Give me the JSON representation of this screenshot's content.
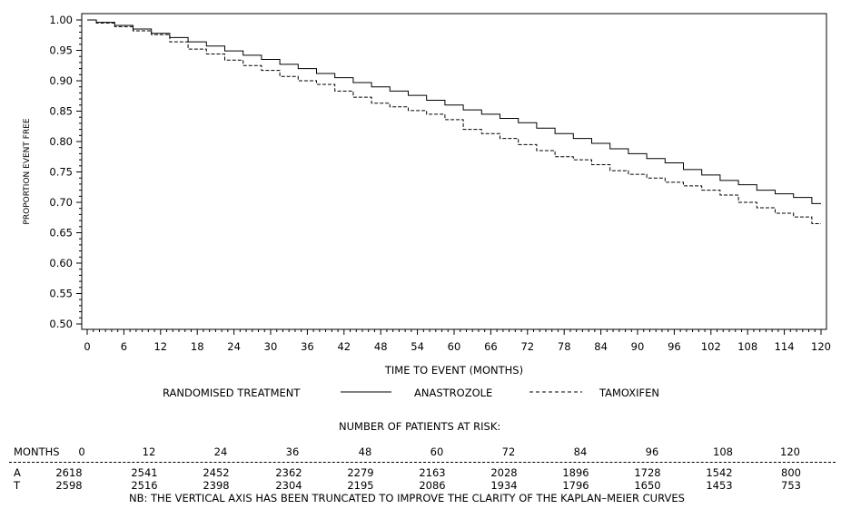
{
  "chart_data": {
    "type": "line",
    "ylabel": "PROPORTION EVENT FREE",
    "xlabel": "TIME TO EVENT (MONTHS)",
    "ylim": [
      0.5,
      1.0
    ],
    "xlim": [
      0,
      120
    ],
    "y_ticks": [
      "0.50",
      "0.55",
      "0.60",
      "0.65",
      "0.70",
      "0.75",
      "0.80",
      "0.85",
      "0.90",
      "0.95",
      "1.00"
    ],
    "x_ticks": [
      "0",
      "6",
      "12",
      "18",
      "24",
      "30",
      "36",
      "42",
      "48",
      "54",
      "60",
      "66",
      "72",
      "78",
      "84",
      "90",
      "96",
      "102",
      "108",
      "114",
      "120"
    ],
    "legend": {
      "title": "RANDOMISED TREATMENT",
      "placement": "bottom"
    },
    "series": [
      {
        "name": "ANASTROZOLE",
        "style": "solid",
        "x": [
          0,
          3,
          6,
          9,
          12,
          15,
          18,
          21,
          24,
          27,
          30,
          33,
          36,
          39,
          42,
          45,
          48,
          51,
          54,
          57,
          60,
          63,
          66,
          69,
          72,
          75,
          78,
          81,
          84,
          87,
          90,
          93,
          96,
          99,
          102,
          105,
          108,
          111,
          114,
          117,
          120
        ],
        "y": [
          1.0,
          0.996,
          0.991,
          0.985,
          0.978,
          0.971,
          0.964,
          0.957,
          0.949,
          0.942,
          0.935,
          0.927,
          0.92,
          0.912,
          0.905,
          0.897,
          0.89,
          0.883,
          0.876,
          0.868,
          0.86,
          0.852,
          0.845,
          0.838,
          0.831,
          0.822,
          0.813,
          0.805,
          0.797,
          0.788,
          0.78,
          0.772,
          0.765,
          0.754,
          0.745,
          0.736,
          0.729,
          0.72,
          0.714,
          0.708,
          0.698
        ]
      },
      {
        "name": "TAMOXIFEN",
        "style": "dashed",
        "x": [
          0,
          3,
          6,
          9,
          12,
          15,
          18,
          21,
          24,
          27,
          30,
          33,
          36,
          39,
          42,
          45,
          48,
          51,
          54,
          57,
          60,
          63,
          66,
          69,
          72,
          75,
          78,
          81,
          84,
          87,
          90,
          93,
          96,
          99,
          102,
          105,
          108,
          111,
          114,
          117,
          120
        ],
        "y": [
          1.0,
          0.995,
          0.989,
          0.982,
          0.976,
          0.964,
          0.952,
          0.944,
          0.934,
          0.925,
          0.917,
          0.907,
          0.9,
          0.894,
          0.883,
          0.873,
          0.863,
          0.857,
          0.851,
          0.845,
          0.836,
          0.82,
          0.813,
          0.805,
          0.795,
          0.785,
          0.775,
          0.77,
          0.762,
          0.752,
          0.746,
          0.74,
          0.733,
          0.727,
          0.72,
          0.712,
          0.7,
          0.691,
          0.682,
          0.676,
          0.665
        ]
      }
    ]
  },
  "risk_table": {
    "title": "NUMBER OF PATIENTS AT RISK:",
    "months_label": "MONTHS",
    "months": [
      "0",
      "12",
      "24",
      "36",
      "48",
      "60",
      "72",
      "84",
      "96",
      "108",
      "120"
    ],
    "rows": [
      {
        "label": "A",
        "values": [
          "2618",
          "2541",
          "2452",
          "2362",
          "2279",
          "2163",
          "2028",
          "1896",
          "1728",
          "1542",
          "800"
        ]
      },
      {
        "label": "T",
        "values": [
          "2598",
          "2516",
          "2398",
          "2304",
          "2195",
          "2086",
          "1934",
          "1796",
          "1650",
          "1453",
          "753"
        ]
      }
    ],
    "footnote": "NB: THE VERTICAL AXIS HAS BEEN TRUNCATED TO IMPROVE THE CLARITY OF THE KAPLAN–MEIER CURVES"
  }
}
